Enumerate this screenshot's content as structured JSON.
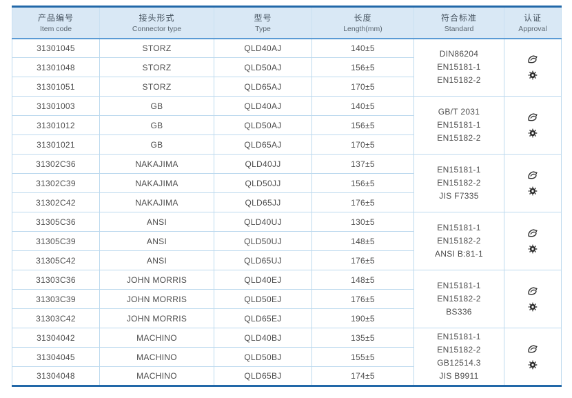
{
  "table": {
    "header": {
      "columns": [
        {
          "zh": "产品编号",
          "en": "Item code"
        },
        {
          "zh": "接头形式",
          "en": "Connector type"
        },
        {
          "zh": "型号",
          "en": "Type"
        },
        {
          "zh": "长度",
          "en": "Length(mm)"
        },
        {
          "zh": "符合标准",
          "en": "Standard"
        },
        {
          "zh": "认证",
          "en": "Approval"
        }
      ]
    },
    "groups": [
      {
        "rows": [
          {
            "item_code": "31301045",
            "connector_type": "STORZ",
            "type": "QLD40AJ",
            "length": "140±5"
          },
          {
            "item_code": "31301048",
            "connector_type": "STORZ",
            "type": "QLD50AJ",
            "length": "156±5"
          },
          {
            "item_code": "31301051",
            "connector_type": "STORZ",
            "type": "QLD65AJ",
            "length": "170±5"
          }
        ],
        "standards": [
          "DIN86204",
          "EN15181-1",
          "EN15182-2"
        ],
        "approvals": [
          "certification-mark-icon",
          "gear-seal-icon"
        ]
      },
      {
        "rows": [
          {
            "item_code": "31301003",
            "connector_type": "GB",
            "type": "QLD40AJ",
            "length": "140±5"
          },
          {
            "item_code": "31301012",
            "connector_type": "GB",
            "type": "QLD50AJ",
            "length": "156±5"
          },
          {
            "item_code": "31301021",
            "connector_type": "GB",
            "type": "QLD65AJ",
            "length": "170±5"
          }
        ],
        "standards": [
          "GB/T 2031",
          "EN15181-1",
          "EN15182-2"
        ],
        "approvals": [
          "certification-mark-icon",
          "gear-seal-icon"
        ]
      },
      {
        "rows": [
          {
            "item_code": "31302C36",
            "connector_type": "NAKAJIMA",
            "type": "QLD40JJ",
            "length": "137±5"
          },
          {
            "item_code": "31302C39",
            "connector_type": "NAKAJIMA",
            "type": "QLD50JJ",
            "length": "156±5"
          },
          {
            "item_code": "31302C42",
            "connector_type": "NAKAJIMA",
            "type": "QLD65JJ",
            "length": "176±5"
          }
        ],
        "standards": [
          "EN15181-1",
          "EN15182-2",
          "JIS F7335"
        ],
        "approvals": [
          "certification-mark-icon",
          "gear-seal-icon"
        ]
      },
      {
        "rows": [
          {
            "item_code": "31305C36",
            "connector_type": "ANSI",
            "type": "QLD40UJ",
            "length": "130±5"
          },
          {
            "item_code": "31305C39",
            "connector_type": "ANSI",
            "type": "QLD50UJ",
            "length": "148±5"
          },
          {
            "item_code": "31305C42",
            "connector_type": "ANSI",
            "type": "QLD65UJ",
            "length": "176±5"
          }
        ],
        "standards": [
          "EN15181-1",
          "EN15182-2",
          "ANSI B:81-1"
        ],
        "approvals": [
          "certification-mark-icon",
          "gear-seal-icon"
        ]
      },
      {
        "rows": [
          {
            "item_code": "31303C36",
            "connector_type": "JOHN MORRIS",
            "type": "QLD40EJ",
            "length": "148±5"
          },
          {
            "item_code": "31303C39",
            "connector_type": "JOHN MORRIS",
            "type": "QLD50EJ",
            "length": "176±5"
          },
          {
            "item_code": "31303C42",
            "connector_type": "JOHN MORRIS",
            "type": "QLD65EJ",
            "length": "190±5"
          }
        ],
        "standards": [
          "EN15181-1",
          "EN15182-2",
          "BS336"
        ],
        "approvals": [
          "certification-mark-icon",
          "gear-seal-icon"
        ]
      },
      {
        "rows": [
          {
            "item_code": "31304042",
            "connector_type": "MACHINO",
            "type": "QLD40BJ",
            "length": "135±5"
          },
          {
            "item_code": "31304045",
            "connector_type": "MACHINO",
            "type": "QLD50BJ",
            "length": "155±5"
          },
          {
            "item_code": "31304048",
            "connector_type": "MACHINO",
            "type": "QLD65BJ",
            "length": "174±5"
          }
        ],
        "standards": [
          "EN15181-1",
          "EN15182-2",
          "GB12514.3",
          "JIS B9911"
        ],
        "approvals": [
          "certification-mark-icon",
          "gear-seal-icon"
        ]
      }
    ]
  },
  "colors": {
    "header_bg": "#d9e8f5",
    "accent_border": "#2268a8",
    "grid_line": "#bcd9ee",
    "header_underline": "#5b9bd5",
    "text": "#4d4d4d"
  }
}
